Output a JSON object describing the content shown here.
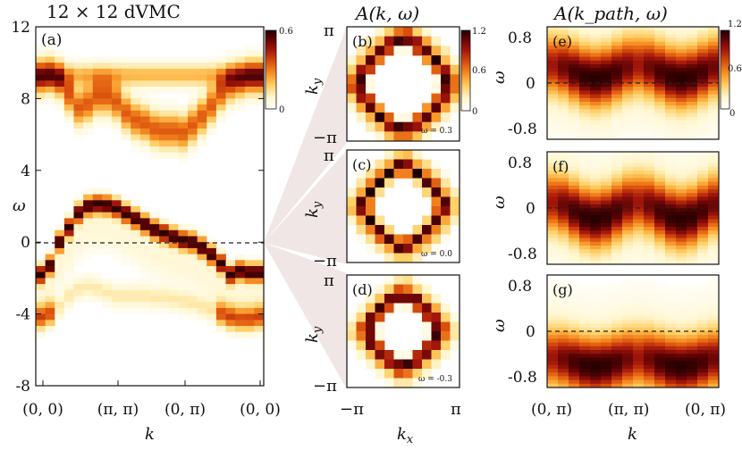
{
  "figure": {
    "title_a": "12 × 12 dVMC",
    "title_b": "A(k, ω)",
    "title_c": "A(k_path, ω)"
  },
  "colormap": {
    "stops": [
      "#ffffff",
      "#fff6cf",
      "#ffd067",
      "#f89124",
      "#d9500d",
      "#a4170c",
      "#5b0204",
      "#1f0000"
    ]
  },
  "chart_data": [
    {
      "id": "a",
      "type": "heatmap",
      "panel_label": "(a)",
      "xlabel": "k",
      "ylabel": "ω",
      "x_ticks": [
        "(0, 0)",
        "(π, π)",
        "(0, π)",
        "(0, 0)"
      ],
      "y_ticks": [
        "-8",
        "-4",
        "0",
        "4",
        "8",
        "12"
      ],
      "ylim": [
        -8,
        12
      ],
      "colorbar": {
        "min": 0,
        "max": 0.6,
        "ticks": [
          "0.6",
          "0"
        ]
      },
      "reference_line": {
        "y": 0,
        "style": "dashed"
      },
      "n_columns": 24,
      "lower_band": [
        -1.8,
        -1.3,
        0.0,
        0.8,
        1.6,
        2.0,
        2.1,
        2.05,
        1.9,
        1.6,
        1.3,
        1.0,
        0.7,
        0.5,
        0.3,
        0.1,
        0.0,
        -0.3,
        -0.7,
        -1.2,
        -1.8,
        -1.6,
        -1.7,
        -1.7
      ],
      "upper_band": [
        9.2,
        9.3,
        9.0,
        8.2,
        7.5,
        7.7,
        8.1,
        8.1,
        7.8,
        7.2,
        6.8,
        6.6,
        6.3,
        6.2,
        6.2,
        6.1,
        6.5,
        7.0,
        7.6,
        8.3,
        8.8,
        9.0,
        9.2,
        9.2
      ],
      "deep_band": [
        -4.2,
        -4.0,
        -3.6,
        -3.0,
        -2.6,
        -2.5,
        -2.6,
        -2.8,
        -3.0,
        -3.0,
        -3.0,
        -3.0,
        -3.1,
        -3.1,
        -3.2,
        -3.3,
        -3.4,
        -3.6,
        -3.8,
        -4.0,
        -4.2,
        -4.3,
        -4.3,
        -4.2
      ]
    },
    {
      "id": "b",
      "type": "heatmap",
      "panel_label": "(b)",
      "omega_label": "ω = 0.3",
      "xlabel": "",
      "ylabel": "k_y",
      "y_ticks": [
        "π",
        "−π"
      ],
      "colorbar": {
        "min": 0,
        "max": 1.2,
        "ticks": [
          "1.2",
          "0.6",
          "0"
        ]
      },
      "radius": 5.0
    },
    {
      "id": "c",
      "type": "heatmap",
      "panel_label": "(c)",
      "omega_label": "ω = 0.0",
      "xlabel": "",
      "ylabel": "k_y",
      "y_ticks": [
        "π",
        "−π"
      ],
      "radius": 4.4
    },
    {
      "id": "d",
      "type": "heatmap",
      "panel_label": "(d)",
      "omega_label": "ω = -0.3",
      "xlabel": "k_x",
      "ylabel": "k_y",
      "y_ticks": [
        "π",
        "−π"
      ],
      "x_ticks": [
        "−π",
        "π"
      ],
      "radius": 4.0
    },
    {
      "id": "e",
      "type": "heatmap",
      "panel_label": "(e)",
      "ylabel": "ω",
      "y_ticks": [
        "0.8",
        "0",
        "-0.8"
      ],
      "ylim": [
        -1,
        1
      ],
      "colorbar": {
        "min": 0,
        "max": 1.2,
        "ticks": [
          "1.2",
          "0.6",
          "0"
        ]
      },
      "band_center": 0.2,
      "band_dispersion": 0.12
    },
    {
      "id": "f",
      "type": "heatmap",
      "panel_label": "(f)",
      "ylabel": "ω",
      "y_ticks": [
        "0.8",
        "0",
        "-0.8"
      ],
      "ylim": [
        -1,
        1
      ],
      "band_center": -0.05,
      "band_dispersion": 0.15
    },
    {
      "id": "g",
      "type": "heatmap",
      "panel_label": "(g)",
      "ylabel": "ω",
      "xlabel": "k",
      "y_ticks": [
        "0.8",
        "0",
        "-0.8"
      ],
      "x_ticks": [
        "(0, π)",
        "(π, π)",
        "(0, π)"
      ],
      "ylim": [
        -1,
        1
      ],
      "band_center": -0.55,
      "band_dispersion": 0.08
    }
  ]
}
